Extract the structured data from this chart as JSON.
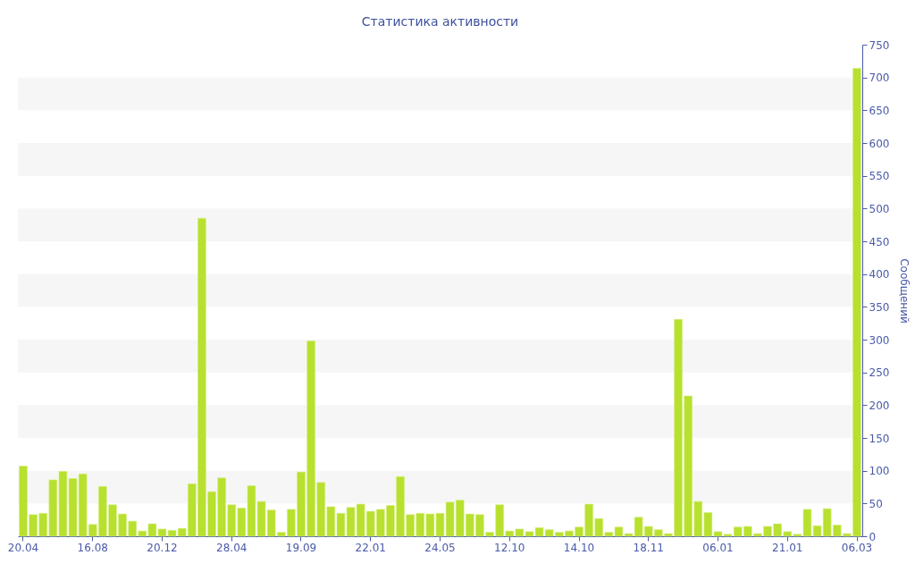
{
  "chart_data": {
    "type": "bar",
    "title": "Статистика активности",
    "y2label": "Сообщений",
    "categories": [
      "20.04",
      null,
      null,
      null,
      null,
      null,
      null,
      "16.08",
      null,
      null,
      null,
      null,
      null,
      null,
      "20.12",
      null,
      null,
      null,
      null,
      null,
      null,
      "28.04",
      null,
      null,
      null,
      null,
      null,
      null,
      "19.09",
      null,
      null,
      null,
      null,
      null,
      null,
      "22.01",
      null,
      null,
      null,
      null,
      null,
      null,
      "24.05",
      null,
      null,
      null,
      null,
      null,
      null,
      "12.10",
      null,
      null,
      null,
      null,
      null,
      null,
      "14.10",
      null,
      null,
      null,
      null,
      null,
      null,
      "18.11",
      null,
      null,
      null,
      null,
      null,
      null,
      "06.01",
      null,
      null,
      null,
      null,
      null,
      null,
      "21.01",
      null,
      null,
      null,
      null,
      null,
      null,
      "06.03"
    ],
    "series": [
      {
        "color": "#b8e02e",
        "axis": "y2",
        "values": [
          107,
          33,
          35,
          86,
          99,
          88,
          95,
          18,
          76,
          48,
          34,
          23,
          8,
          19,
          11,
          9,
          12,
          80,
          485,
          68,
          89,
          48,
          43,
          77,
          53,
          40,
          6,
          41,
          98,
          298,
          82,
          45,
          35,
          44,
          49,
          38,
          41,
          47,
          91,
          33,
          35,
          34,
          35,
          52,
          55,
          34,
          33,
          6,
          48,
          8,
          11,
          7,
          13,
          10,
          6,
          8,
          14,
          49,
          27,
          6,
          14,
          4,
          29,
          15,
          10,
          4,
          331,
          214,
          53,
          36,
          7,
          3,
          14,
          15,
          4,
          15,
          19,
          7,
          3,
          41,
          16,
          42,
          17,
          4,
          714
        ]
      }
    ],
    "y2lim": [
      0,
      750
    ],
    "y2ticks": [
      0,
      50,
      100,
      150,
      200,
      250,
      300,
      350,
      400,
      450,
      500,
      550,
      600,
      650,
      700,
      750
    ],
    "bands": [
      {
        "axis": "y2",
        "from": 50,
        "to": 100,
        "color": "#f6f6f6"
      },
      {
        "axis": "y2",
        "from": 150,
        "to": 200,
        "color": "#f6f6f6"
      },
      {
        "axis": "y2",
        "from": 250,
        "to": 300,
        "color": "#f6f6f6"
      },
      {
        "axis": "y2",
        "from": 350,
        "to": 400,
        "color": "#f6f6f6"
      },
      {
        "axis": "y2",
        "from": 450,
        "to": 500,
        "color": "#f6f6f6"
      },
      {
        "axis": "y2",
        "from": 550,
        "to": 600,
        "color": "#f6f6f6"
      },
      {
        "axis": "y2",
        "from": 650,
        "to": 700,
        "color": "#f6f6f6"
      }
    ]
  }
}
